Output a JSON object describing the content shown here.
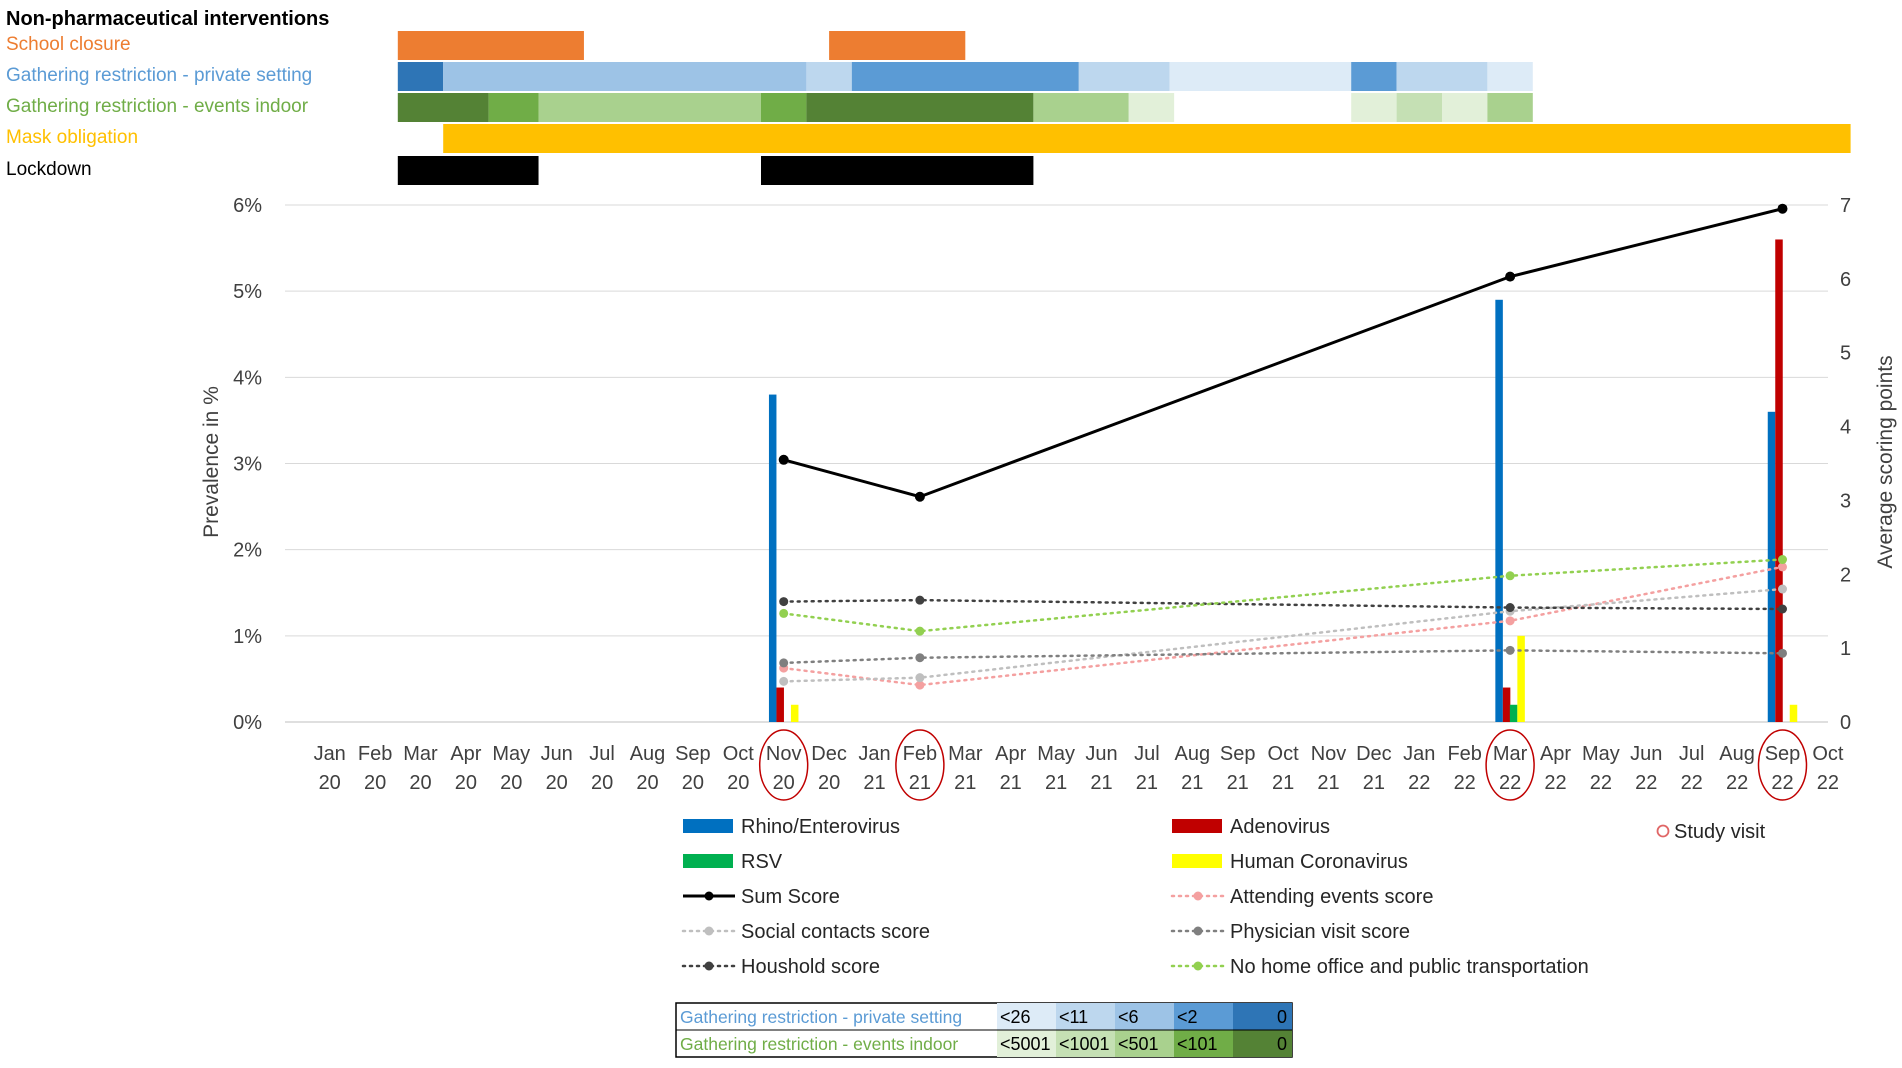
{
  "chart_data": {
    "type": "bar",
    "title": "Non-pharmaceutical interventions",
    "months": [
      "Jan 20",
      "Feb 20",
      "Mar 20",
      "Apr 20",
      "May 20",
      "Jun 20",
      "Jul 20",
      "Aug 20",
      "Sep 20",
      "Oct 20",
      "Nov 20",
      "Dec 20",
      "Jan 21",
      "Feb 21",
      "Mar 21",
      "Apr 21",
      "May 21",
      "Jun 21",
      "Jul 21",
      "Aug 21",
      "Sep 21",
      "Oct 21",
      "Nov 21",
      "Dec 21",
      "Jan 22",
      "Feb 22",
      "Mar 22",
      "Apr 22",
      "May 22",
      "Jun 22",
      "Jul 22",
      "Aug 22",
      "Sep 22",
      "Oct 22"
    ],
    "ylabel": "Prevalence in %",
    "ylim": [
      0,
      6
    ],
    "y_ticks": [
      "0%",
      "1%",
      "2%",
      "3%",
      "4%",
      "5%",
      "6%"
    ],
    "y2label": "Average scoring points",
    "y2lim": [
      0,
      7
    ],
    "y2_ticks": [
      "0",
      "1",
      "2",
      "3",
      "4",
      "5",
      "6",
      "7"
    ],
    "grid": true,
    "study_visits": [
      "Nov 20",
      "Feb 21",
      "Mar 22",
      "Sep 22"
    ],
    "interventions": [
      {
        "label": "School closure",
        "color": "#ED7D31",
        "segments": [
          {
            "from": 2.0,
            "to": 6.1,
            "level": "on"
          },
          {
            "from": 11.5,
            "to": 14.5,
            "level": "on"
          }
        ]
      },
      {
        "label": "Gathering restriction - private setting",
        "color": "#5B9BD5",
        "segments": [
          {
            "from": 2.0,
            "to": 3.0,
            "level": "0"
          },
          {
            "from": 3.0,
            "to": 11.0,
            "level": "<6"
          },
          {
            "from": 11.0,
            "to": 12.0,
            "level": "<11"
          },
          {
            "from": 12.0,
            "to": 17.0,
            "level": "<2"
          },
          {
            "from": 17.0,
            "to": 19.0,
            "level": "<11"
          },
          {
            "from": 19.0,
            "to": 23.0,
            "level": "<26"
          },
          {
            "from": 23.0,
            "to": 24.0,
            "level": "<2"
          },
          {
            "from": 24.0,
            "to": 26.0,
            "level": "<11"
          },
          {
            "from": 26.0,
            "to": 27.0,
            "level": "<26"
          }
        ]
      },
      {
        "label": "Gathering restriction - events indoor",
        "color": "#70AD47",
        "segments": [
          {
            "from": 2.0,
            "to": 4.0,
            "level": "0"
          },
          {
            "from": 4.0,
            "to": 5.1,
            "level": "<101"
          },
          {
            "from": 5.1,
            "to": 10.0,
            "level": "<501"
          },
          {
            "from": 10.0,
            "to": 11.0,
            "level": "<101"
          },
          {
            "from": 11.0,
            "to": 16.0,
            "level": "0"
          },
          {
            "from": 16.0,
            "to": 18.1,
            "level": "<501"
          },
          {
            "from": 18.1,
            "to": 19.1,
            "level": "<5001"
          },
          {
            "from": 23.0,
            "to": 24.0,
            "level": "<5001"
          },
          {
            "from": 24.0,
            "to": 25.0,
            "level": "<1001"
          },
          {
            "from": 25.0,
            "to": 26.0,
            "level": "<5001"
          },
          {
            "from": 26.0,
            "to": 27.0,
            "level": "<501"
          }
        ]
      },
      {
        "label": "Mask obligation",
        "color": "#FFC000",
        "segments": [
          {
            "from": 3.0,
            "to": 34.0,
            "level": "on"
          }
        ]
      },
      {
        "label": "Lockdown",
        "color": "#000000",
        "segments": [
          {
            "from": 2.0,
            "to": 5.1,
            "level": "on"
          },
          {
            "from": 10.0,
            "to": 16.0,
            "level": "on"
          }
        ]
      }
    ],
    "series": [
      {
        "name": "Rhino/Enterovirus",
        "type": "bar",
        "color": "#0070C0",
        "axis": "left",
        "points": [
          {
            "x": "Nov 20",
            "y": 3.8
          },
          {
            "x": "Mar 22",
            "y": 4.9
          },
          {
            "x": "Sep 22",
            "y": 3.6
          }
        ]
      },
      {
        "name": "Adenovirus",
        "type": "bar",
        "color": "#C00000",
        "axis": "left",
        "points": [
          {
            "x": "Nov 20",
            "y": 0.4
          },
          {
            "x": "Mar 22",
            "y": 0.4
          },
          {
            "x": "Sep 22",
            "y": 5.6
          }
        ]
      },
      {
        "name": "RSV",
        "type": "bar",
        "color": "#00B050",
        "axis": "left",
        "points": [
          {
            "x": "Nov 20",
            "y": 0.0
          },
          {
            "x": "Mar 22",
            "y": 0.2
          },
          {
            "x": "Sep 22",
            "y": 0.0
          }
        ]
      },
      {
        "name": "Human Coronavirus",
        "type": "bar",
        "color": "#FFFF00",
        "axis": "left",
        "points": [
          {
            "x": "Nov 20",
            "y": 0.2
          },
          {
            "x": "Mar 22",
            "y": 1.0
          },
          {
            "x": "Sep 22",
            "y": 0.2
          }
        ]
      },
      {
        "name": "Sum Score",
        "type": "line",
        "color": "#000000",
        "axis": "right",
        "points": [
          {
            "x": "Nov 20",
            "y": 3.55
          },
          {
            "x": "Feb 21",
            "y": 3.05
          },
          {
            "x": "Mar 22",
            "y": 6.03
          },
          {
            "x": "Sep 22",
            "y": 6.95
          }
        ]
      },
      {
        "name": "Attending events score",
        "type": "dotted",
        "color": "#F4A0A0",
        "axis": "right",
        "points": [
          {
            "x": "Nov 20",
            "y": 0.73
          },
          {
            "x": "Feb 21",
            "y": 0.5
          },
          {
            "x": "Mar 22",
            "y": 1.37
          },
          {
            "x": "Sep 22",
            "y": 2.1
          }
        ]
      },
      {
        "name": "Social contacts score",
        "type": "dotted",
        "color": "#BFBFBF",
        "axis": "right",
        "points": [
          {
            "x": "Nov 20",
            "y": 0.55
          },
          {
            "x": "Feb 21",
            "y": 0.6
          },
          {
            "x": "Mar 22",
            "y": 1.5
          },
          {
            "x": "Sep 22",
            "y": 1.8
          }
        ]
      },
      {
        "name": "Physician visit score",
        "type": "dotted",
        "color": "#7F7F7F",
        "axis": "right",
        "points": [
          {
            "x": "Nov 20",
            "y": 0.8
          },
          {
            "x": "Feb 21",
            "y": 0.87
          },
          {
            "x": "Mar 22",
            "y": 0.97
          },
          {
            "x": "Sep 22",
            "y": 0.93
          }
        ]
      },
      {
        "name": "Houshold score",
        "type": "dotted",
        "color": "#404040",
        "axis": "right",
        "points": [
          {
            "x": "Nov 20",
            "y": 1.63
          },
          {
            "x": "Feb 21",
            "y": 1.65
          },
          {
            "x": "Mar 22",
            "y": 1.55
          },
          {
            "x": "Sep 22",
            "y": 1.53
          }
        ]
      },
      {
        "name": "No home office and public transportation",
        "type": "dotted",
        "color": "#92D050",
        "axis": "right",
        "points": [
          {
            "x": "Nov 20",
            "y": 1.47
          },
          {
            "x": "Feb 21",
            "y": 1.23
          },
          {
            "x": "Mar 22",
            "y": 1.98
          },
          {
            "x": "Sep 22",
            "y": 2.2
          }
        ]
      }
    ],
    "legend": {
      "position": "bottom",
      "study_visit_label": "Study visit",
      "order": [
        "Rhino/Enterovirus",
        "Adenovirus",
        "RSV",
        "Human Coronavirus",
        "Sum Score",
        "Attending events score",
        "Social contacts score",
        "Physician visit score",
        "Houshold score",
        "No home office and public transportation"
      ]
    },
    "restriction_scale": {
      "private": {
        "label": "Gathering restriction - private setting",
        "levels": [
          {
            "text": "<26",
            "color": "#DDEBF7"
          },
          {
            "text": "<11",
            "color": "#BDD7EE"
          },
          {
            "text": "<6",
            "color": "#9DC3E6"
          },
          {
            "text": "<2",
            "color": "#5B9BD5"
          },
          {
            "text": "0",
            "color": "#2E75B6"
          }
        ]
      },
      "events": {
        "label": "Gathering restriction - events indoor",
        "levels": [
          {
            "text": "<5001",
            "color": "#E2F0D9"
          },
          {
            "text": "<1001",
            "color": "#C5E0B4"
          },
          {
            "text": "<501",
            "color": "#A9D18E"
          },
          {
            "text": "<101",
            "color": "#70AD47"
          },
          {
            "text": "0",
            "color": "#548235"
          }
        ]
      }
    }
  }
}
